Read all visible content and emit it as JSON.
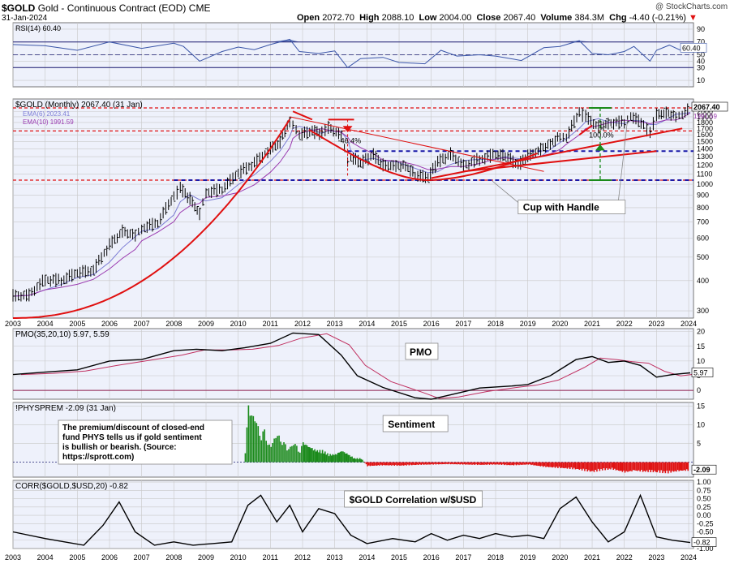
{
  "header": {
    "symbol": "$GOLD",
    "name": "Gold - Continuous Contract (EOD)",
    "exchange": "CME",
    "date": "31-Jan-2024",
    "watermark": "@ StockCharts.com",
    "open_label": "Open",
    "open": "2072.70",
    "high_label": "High",
    "high": "2088.10",
    "low_label": "Low",
    "low": "2004.00",
    "close_label": "Close",
    "close": "2067.40",
    "volume_label": "Volume",
    "volume": "384.3M",
    "chg_label": "Chg",
    "chg": "-4.40 (-0.21%)"
  },
  "colors": {
    "price": "#000000",
    "ema6": "#7b7bd4",
    "ema10": "#9a3ab0",
    "red": "#e01010",
    "blue": "#1a1aa8",
    "green": "#1a8a1a",
    "rsi": "#3a55a8",
    "pmo_signal": "#c03060",
    "grid": "#c8c8c8"
  },
  "chart_data": [
    {
      "type": "line",
      "id": "rsi",
      "title": "RSI(14) 60.40",
      "ylim": [
        0,
        100
      ],
      "ticks": [
        "90",
        "70",
        "50",
        "40",
        "30",
        "10"
      ],
      "tick_values": [
        90,
        70,
        50,
        40,
        30,
        10
      ],
      "last_label": "60.40",
      "x": [
        2003.0,
        2004.0,
        2005.0,
        2006.0,
        2007.0,
        2008.0,
        2008.3,
        2008.8,
        2009.5,
        2010.0,
        2010.5,
        2011.0,
        2011.6,
        2011.9,
        2012.5,
        2013.0,
        2013.4,
        2013.8,
        2014.5,
        2015.0,
        2015.8,
        2016.3,
        2016.8,
        2017.5,
        2018.0,
        2018.8,
        2019.5,
        2020.0,
        2020.6,
        2021.0,
        2021.5,
        2022.0,
        2022.3,
        2022.8,
        2023.0,
        2023.4,
        2023.8,
        2024.05
      ],
      "values": [
        66,
        64,
        57,
        70,
        60,
        68,
        63,
        40,
        55,
        62,
        58,
        66,
        74,
        55,
        52,
        56,
        30,
        44,
        46,
        38,
        36,
        57,
        48,
        50,
        48,
        41,
        61,
        63,
        72,
        52,
        50,
        55,
        63,
        40,
        57,
        65,
        56,
        60
      ]
    },
    {
      "type": "line",
      "id": "price",
      "title": "$GOLD (Monthly) 2067.40 (31 Jan)",
      "log_scale": true,
      "ylim": [
        280,
        2250
      ],
      "ticks": [
        "2000",
        "1900",
        "1800",
        "1700",
        "1600",
        "1500",
        "1400",
        "1300",
        "1200",
        "1100",
        "1000",
        "900",
        "800",
        "700",
        "600",
        "500",
        "400",
        "300"
      ],
      "tick_values": [
        2000,
        1900,
        1800,
        1700,
        1600,
        1500,
        1400,
        1300,
        1200,
        1100,
        1000,
        900,
        800,
        700,
        600,
        500,
        400,
        300
      ],
      "x_ticks": [
        "2003",
        "2004",
        "2005",
        "2006",
        "2007",
        "2008",
        "2009",
        "2010",
        "2011",
        "2012",
        "2013",
        "2014",
        "2015",
        "2016",
        "2017",
        "2018",
        "2019",
        "2020",
        "2021",
        "2022",
        "2023",
        "2024"
      ],
      "x": [
        2003.0,
        2003.5,
        2004.0,
        2004.5,
        2005.0,
        2005.5,
        2006.0,
        2006.4,
        2006.8,
        2007.0,
        2007.5,
        2008.0,
        2008.2,
        2008.5,
        2008.8,
        2009.0,
        2009.5,
        2010.0,
        2010.5,
        2011.0,
        2011.3,
        2011.6,
        2011.7,
        2011.9,
        2012.3,
        2012.6,
        2012.8,
        2013.2,
        2013.4,
        2013.5,
        2013.8,
        2014.2,
        2014.5,
        2014.9,
        2015.2,
        2015.5,
        2015.9,
        2016.2,
        2016.6,
        2017.0,
        2017.5,
        2018.0,
        2018.3,
        2018.7,
        2019.0,
        2019.4,
        2019.7,
        2020.0,
        2020.2,
        2020.6,
        2020.8,
        2021.2,
        2021.5,
        2022.0,
        2022.2,
        2022.6,
        2022.8,
        2023.0,
        2023.3,
        2023.6,
        2023.8,
        2024.05
      ],
      "values": [
        345,
        350,
        405,
        400,
        430,
        440,
        560,
        640,
        620,
        660,
        690,
        890,
        960,
        870,
        760,
        930,
        950,
        1110,
        1220,
        1400,
        1500,
        1830,
        1780,
        1600,
        1650,
        1620,
        1720,
        1600,
        1250,
        1300,
        1220,
        1320,
        1200,
        1200,
        1200,
        1090,
        1060,
        1230,
        1330,
        1200,
        1270,
        1330,
        1300,
        1200,
        1300,
        1400,
        1480,
        1580,
        1560,
        1970,
        1900,
        1730,
        1800,
        1800,
        1920,
        1750,
        1620,
        1930,
        1990,
        1920,
        1950,
        2067
      ],
      "ema6_label": "EMA(6) 2023.41",
      "ema10_label": "EMA(10) 1991.59",
      "last_label": "2067.40",
      "last_ema": "1991.59",
      "annotations": {
        "decline_pct": "-46.4%",
        "rise_pct": "100.0%",
        "cup_label": "Cup with Handle"
      },
      "levels": [
        {
          "type": "red-dashed",
          "value": 2067
        },
        {
          "type": "red-dashed",
          "value": 1660
        },
        {
          "type": "red-dashed",
          "value": 1040
        },
        {
          "type": "blue-dashed",
          "value": 1370
        },
        {
          "type": "blue-dashed",
          "value": 1040
        }
      ]
    },
    {
      "type": "line",
      "id": "pmo",
      "title": "PMO(35,20,10) 5.97, 5.59",
      "panel_label": "PMO",
      "ylim": [
        -3,
        21
      ],
      "ticks": [
        "20",
        "15",
        "10",
        "5",
        "0"
      ],
      "tick_values": [
        20,
        15,
        10,
        5,
        0
      ],
      "last_label": "5.97",
      "x": [
        2003.0,
        2004.0,
        2005.0,
        2006.0,
        2007.0,
        2008.0,
        2008.7,
        2009.5,
        2010.2,
        2011.0,
        2011.7,
        2012.5,
        2013.2,
        2013.7,
        2014.5,
        2015.5,
        2016.0,
        2016.6,
        2017.5,
        2018.5,
        2019.0,
        2019.7,
        2020.5,
        2021.0,
        2021.5,
        2022.0,
        2022.5,
        2023.0,
        2023.5,
        2024.05
      ],
      "values": [
        5.4,
        6.2,
        7.0,
        10.0,
        10.5,
        13.5,
        14.0,
        13.5,
        14.5,
        16.0,
        19.5,
        19.0,
        12.0,
        5.0,
        1.0,
        -2.5,
        -3.0,
        -1.5,
        0.8,
        1.5,
        2.0,
        5.0,
        10.5,
        11.5,
        9.5,
        10.0,
        8.5,
        4.5,
        5.4,
        5.97
      ]
    },
    {
      "type": "bar",
      "id": "physprem",
      "title": "!PHYSPREM -2.09 (31 Jan)",
      "panel_label": "Sentiment",
      "note": "The premium/discount of closed-end fund PHYS tells us if gold sentiment is bullish or bearish. (Source: https://sprott.com)",
      "ylim": [
        -4,
        16
      ],
      "ticks": [
        "15",
        "10",
        "5"
      ],
      "tick_values": [
        15,
        10,
        5
      ],
      "last_label": "-2.09",
      "x": [
        2010.2,
        2010.3,
        2010.4,
        2010.5,
        2010.6,
        2010.7,
        2010.8,
        2010.9,
        2011.0,
        2011.1,
        2011.2,
        2011.3,
        2011.4,
        2011.5,
        2011.6,
        2011.7,
        2011.8,
        2011.9,
        2012.0,
        2012.2,
        2012.4,
        2012.6,
        2012.8,
        2013.0,
        2013.2,
        2013.4,
        2013.6,
        2013.8,
        2014.0,
        2014.5,
        2015.0,
        2015.5,
        2016.0,
        2016.5,
        2017.0,
        2017.5,
        2018.0,
        2018.5,
        2019.0,
        2019.5,
        2020.0,
        2020.5,
        2021.0,
        2021.3,
        2021.6,
        2022.0,
        2022.3,
        2022.6,
        2023.0,
        2023.3,
        2023.6,
        2024.0
      ],
      "values": [
        3,
        14,
        13,
        11,
        9,
        7,
        8,
        5,
        4,
        6,
        8,
        5,
        6,
        3,
        4,
        5,
        4,
        3,
        5,
        4,
        3,
        3,
        2,
        2,
        3,
        2,
        1,
        1,
        -1,
        -0.8,
        -0.9,
        -0.7,
        -0.6,
        -0.5,
        -0.6,
        -0.7,
        -0.6,
        -0.8,
        -0.6,
        -1.2,
        -1.5,
        -1.8,
        -2.5,
        -2.0,
        -1.8,
        -2.6,
        -2.2,
        -2.4,
        -2.5,
        -2.8,
        -2.3,
        -2.09
      ]
    },
    {
      "type": "line",
      "id": "corr",
      "title": "CORR($GOLD,$USD,20) -0.82",
      "panel_label": "$GOLD Correlation w/$USD",
      "ylim": [
        -1,
        1.05
      ],
      "ticks": [
        "1.00",
        "0.75",
        "0.50",
        "0.25",
        "0.00",
        "-0.25",
        "-0.50",
        "-0.75",
        "-1.00"
      ],
      "tick_values": [
        1.0,
        0.75,
        0.5,
        0.25,
        0.0,
        -0.25,
        -0.5,
        -0.75,
        -1.0
      ],
      "last_label": "-0.82",
      "x_ticks": [
        "2003",
        "2004",
        "2005",
        "2006",
        "2007",
        "2008",
        "2009",
        "2010",
        "2011",
        "2012",
        "2013",
        "2014",
        "2015",
        "2016",
        "2017",
        "2018",
        "2019",
        "2020",
        "2021",
        "2022",
        "2023",
        "2024"
      ],
      "x": [
        2003.0,
        2004.0,
        2004.6,
        2005.2,
        2005.8,
        2006.3,
        2006.8,
        2007.4,
        2008.0,
        2008.6,
        2009.2,
        2009.8,
        2010.3,
        2010.7,
        2011.2,
        2011.6,
        2012.0,
        2012.5,
        2013.0,
        2013.5,
        2014.0,
        2014.8,
        2015.5,
        2016.0,
        2016.5,
        2017.0,
        2017.5,
        2018.0,
        2018.5,
        2019.0,
        2019.5,
        2020.0,
        2020.5,
        2021.0,
        2021.5,
        2022.0,
        2022.5,
        2023.0,
        2023.5,
        2024.05
      ],
      "values": [
        -0.5,
        -0.7,
        -0.8,
        -0.9,
        -0.3,
        0.4,
        -0.5,
        -0.9,
        -0.8,
        -0.9,
        -0.85,
        -0.8,
        0.3,
        0.6,
        -0.2,
        0.3,
        -0.5,
        0.2,
        0.05,
        -0.6,
        -0.85,
        -0.7,
        -0.8,
        -0.55,
        -0.75,
        -0.6,
        -0.7,
        -0.55,
        -0.65,
        -0.6,
        -0.7,
        0.2,
        0.55,
        -0.2,
        -0.8,
        -0.5,
        0.6,
        -0.65,
        -0.75,
        -0.82
      ]
    }
  ]
}
